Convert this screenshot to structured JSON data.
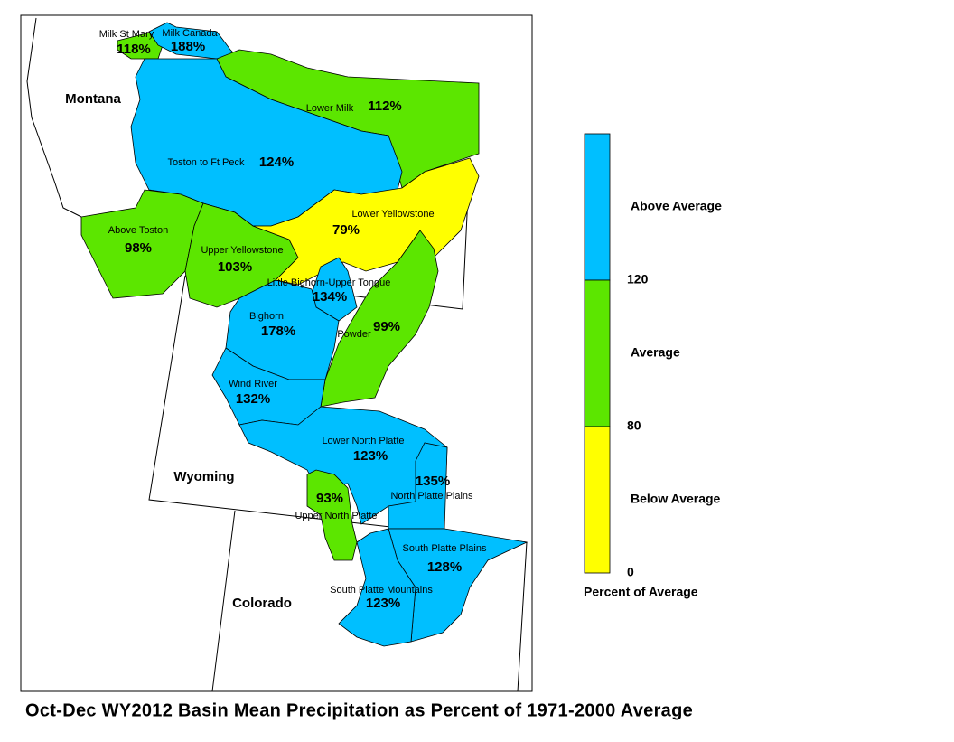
{
  "title": "Oct-Dec WY2012 Basin Mean Precipitation as Percent of 1971-2000 Average",
  "states": [
    "Montana",
    "Wyoming",
    "Colorado"
  ],
  "basins": [
    {
      "name": "Milk St Mary",
      "pct": "118%",
      "color": "#5ce600"
    },
    {
      "name": "Milk Canada",
      "pct": "188%",
      "color": "#00bfff"
    },
    {
      "name": "Lower Milk",
      "pct": "112%",
      "color": "#5ce600"
    },
    {
      "name": "Toston to Ft Peck",
      "pct": "124%",
      "color": "#00bfff"
    },
    {
      "name": "Above Toston",
      "pct": "98%",
      "color": "#5ce600"
    },
    {
      "name": "Upper Yellowstone",
      "pct": "103%",
      "color": "#5ce600"
    },
    {
      "name": "Lower Yellowstone",
      "pct": "79%",
      "color": "#ffff00"
    },
    {
      "name": "Little Bighorn-Upper Tongue",
      "pct": "134%",
      "color": "#00bfff"
    },
    {
      "name": "Powder",
      "pct": "99%",
      "color": "#5ce600"
    },
    {
      "name": "Bighorn",
      "pct": "178%",
      "color": "#00bfff"
    },
    {
      "name": "Wind River",
      "pct": "132%",
      "color": "#00bfff"
    },
    {
      "name": "Lower North Platte",
      "pct": "123%",
      "color": "#00bfff"
    },
    {
      "name": "North Platte Plains",
      "pct": "135%",
      "color": "#00bfff"
    },
    {
      "name": "Upper North Platte",
      "pct": "93%",
      "color": "#5ce600"
    },
    {
      "name": "South Platte Plains",
      "pct": "128%",
      "color": "#00bfff"
    },
    {
      "name": "South Platte Mountains",
      "pct": "123%",
      "color": "#00bfff"
    }
  ],
  "legend": {
    "title": "Percent of Average",
    "classes": [
      {
        "label": "Above Average",
        "color": "#00bfff"
      },
      {
        "label": "Average",
        "color": "#5ce600"
      },
      {
        "label": "Below Average",
        "color": "#ffff00"
      }
    ],
    "breaks": [
      "120",
      "80",
      "0"
    ]
  }
}
